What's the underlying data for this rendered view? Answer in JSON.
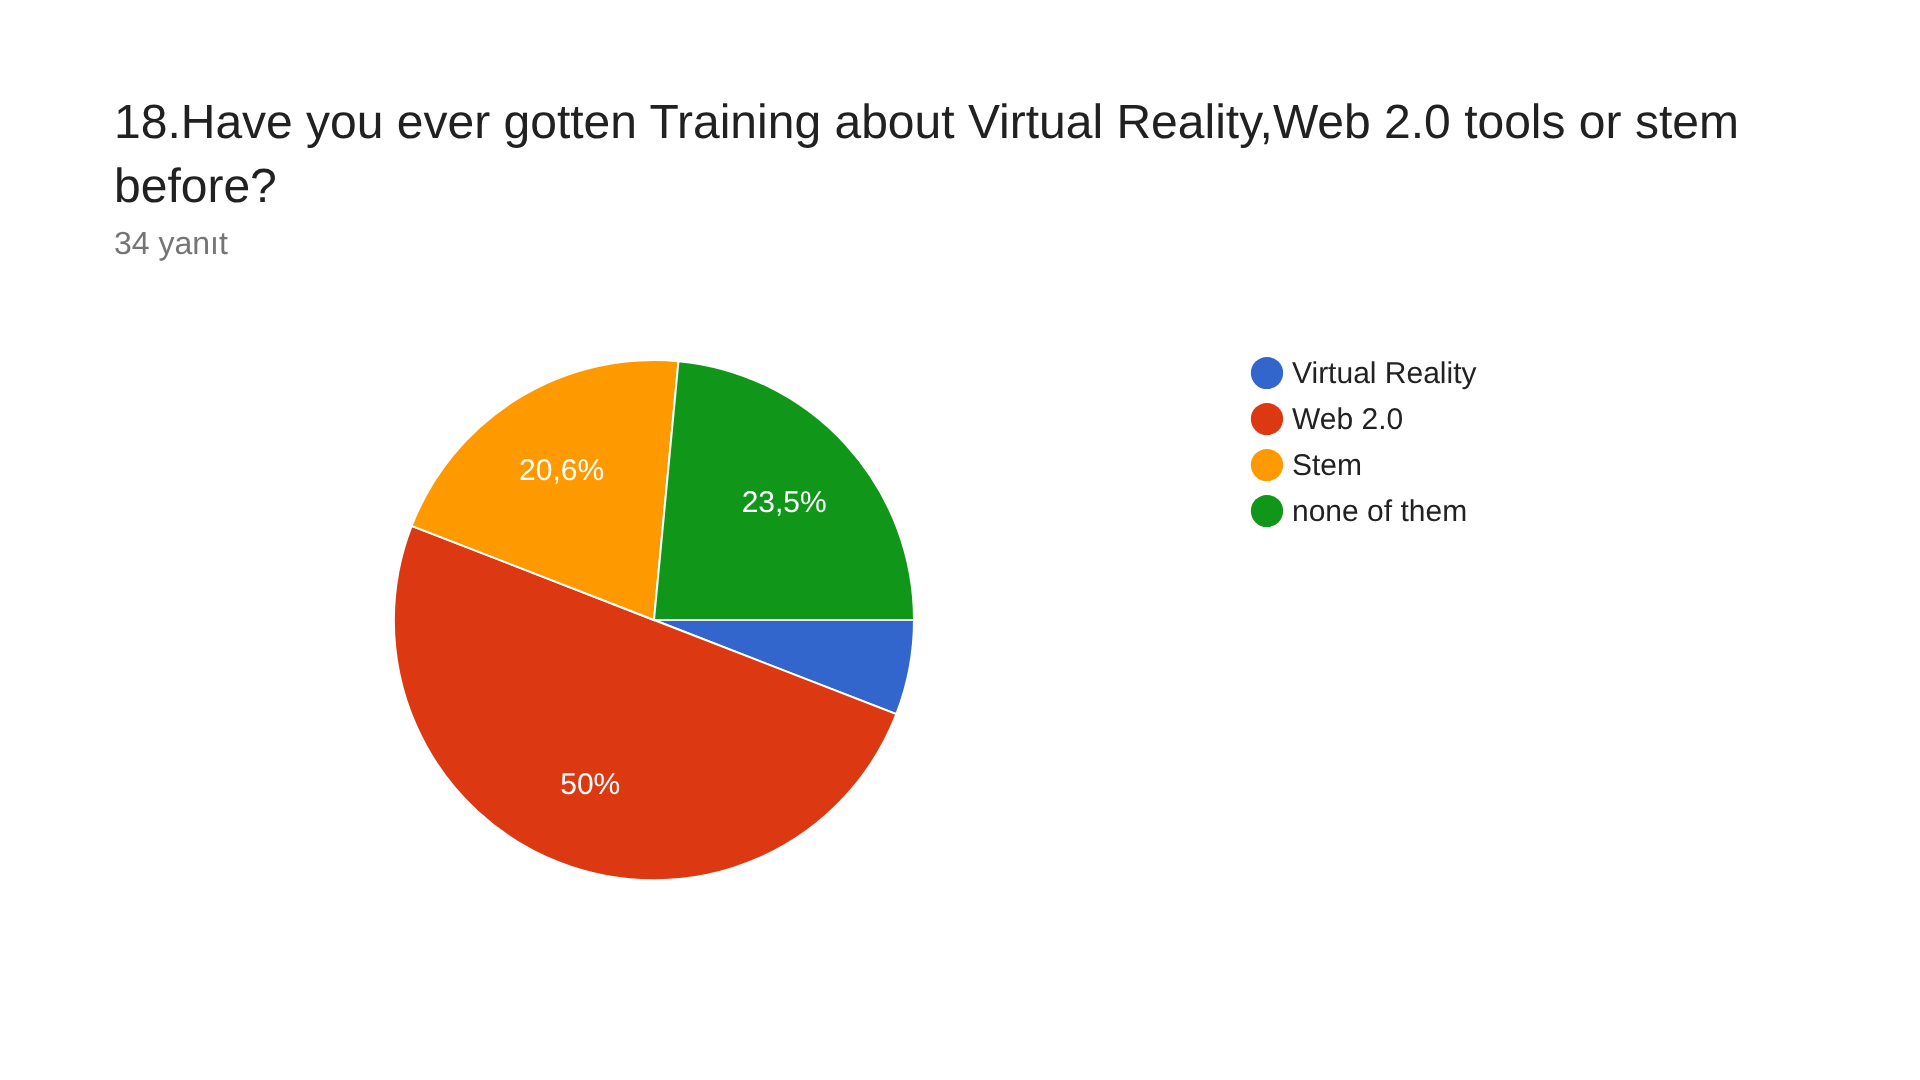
{
  "chart_data": {
    "type": "pie",
    "title": "18.Have you ever gotten Training about Virtual Reality,Web 2.0 tools or stem before?",
    "subtitle": "34 yanıt",
    "categories": [
      "Virtual Reality",
      "Web 2.0",
      "Stem",
      "none of them"
    ],
    "values": [
      5.9,
      50,
      20.6,
      23.5
    ],
    "colors": [
      "#3366cc",
      "#dc3912",
      "#ff9900",
      "#109618"
    ],
    "value_labels": [
      null,
      "50%",
      "20,6%",
      "23,5%"
    ],
    "legend": "right"
  }
}
